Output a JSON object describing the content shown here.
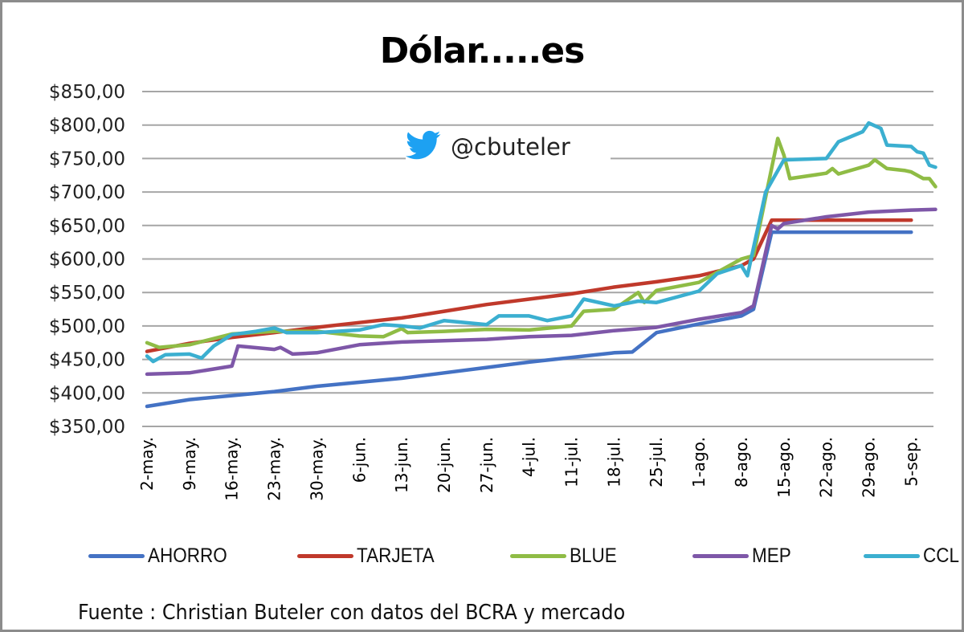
{
  "title": "Dólar.....es",
  "watermark": {
    "icon": "twitter-bird-icon",
    "handle": "@cbuteler",
    "color": "#1da1f2"
  },
  "source": "Fuente : Christian Buteler con datos del BCRA y mercado",
  "legend": [
    {
      "name": "AHORRO",
      "color": "#4472c4"
    },
    {
      "name": "TARJETA",
      "color": "#c0392b"
    },
    {
      "name": "BLUE",
      "color": "#8fbc45"
    },
    {
      "name": "MEP",
      "color": "#7e57a8"
    },
    {
      "name": "CCL",
      "color": "#3bafd0"
    }
  ],
  "chart_data": {
    "type": "line",
    "title": "Dólar.....es",
    "xlabel": "",
    "ylabel": "",
    "ylim": [
      350,
      850
    ],
    "y_ticks": [
      "$350,00",
      "$400,00",
      "$450,00",
      "$500,00",
      "$550,00",
      "$600,00",
      "$650,00",
      "$700,00",
      "$750,00",
      "$800,00",
      "$850,00"
    ],
    "x_tick_labels": [
      "2-may.",
      "9-may.",
      "16-may.",
      "23-may.",
      "30-may.",
      "6-jun.",
      "13-jun.",
      "20-jun.",
      "27-jun.",
      "4-jul.",
      "11-jul.",
      "18-jul.",
      "25-jul.",
      "1-ago.",
      "8-ago.",
      "15-ago.",
      "22-ago.",
      "29-ago.",
      "5-sep."
    ],
    "grid": true,
    "legend_position": "bottom",
    "x_unit": "days since 2-may",
    "series": [
      {
        "name": "AHORRO",
        "color": "#4472c4",
        "points": [
          [
            0,
            380
          ],
          [
            7,
            390
          ],
          [
            14,
            396
          ],
          [
            21,
            402
          ],
          [
            28,
            410
          ],
          [
            35,
            416
          ],
          [
            42,
            422
          ],
          [
            49,
            430
          ],
          [
            56,
            438
          ],
          [
            63,
            446
          ],
          [
            70,
            453
          ],
          [
            77,
            460
          ],
          [
            80,
            461
          ],
          [
            84,
            490
          ],
          [
            91,
            503
          ],
          [
            98,
            515
          ],
          [
            100,
            525
          ],
          [
            103,
            640
          ],
          [
            109,
            640
          ],
          [
            116,
            640
          ],
          [
            123,
            640
          ],
          [
            126,
            640
          ]
        ]
      },
      {
        "name": "TARJETA",
        "color": "#c0392b",
        "points": [
          [
            0,
            462
          ],
          [
            7,
            474
          ],
          [
            14,
            483
          ],
          [
            21,
            490
          ],
          [
            28,
            498
          ],
          [
            35,
            505
          ],
          [
            42,
            512
          ],
          [
            49,
            522
          ],
          [
            56,
            532
          ],
          [
            63,
            540
          ],
          [
            70,
            548
          ],
          [
            77,
            558
          ],
          [
            84,
            566
          ],
          [
            91,
            575
          ],
          [
            98,
            590
          ],
          [
            100,
            600
          ],
          [
            103,
            658
          ],
          [
            109,
            658
          ],
          [
            116,
            658
          ],
          [
            123,
            658
          ],
          [
            126,
            658
          ]
        ]
      },
      {
        "name": "BLUE",
        "color": "#8fbc45",
        "points": [
          [
            0,
            475
          ],
          [
            2,
            468
          ],
          [
            7,
            472
          ],
          [
            14,
            488
          ],
          [
            21,
            492
          ],
          [
            28,
            492
          ],
          [
            35,
            485
          ],
          [
            39,
            484
          ],
          [
            42,
            496
          ],
          [
            43,
            490
          ],
          [
            49,
            492
          ],
          [
            56,
            495
          ],
          [
            63,
            494
          ],
          [
            70,
            500
          ],
          [
            72,
            522
          ],
          [
            77,
            525
          ],
          [
            81,
            550
          ],
          [
            82,
            535
          ],
          [
            84,
            553
          ],
          [
            91,
            565
          ],
          [
            98,
            600
          ],
          [
            100,
            605
          ],
          [
            104,
            780
          ],
          [
            105,
            755
          ],
          [
            106,
            720
          ],
          [
            112,
            728
          ],
          [
            113,
            735
          ],
          [
            114,
            727
          ],
          [
            119,
            740
          ],
          [
            120,
            748
          ],
          [
            122,
            735
          ],
          [
            125,
            732
          ],
          [
            126,
            730
          ],
          [
            128,
            720
          ],
          [
            129,
            720
          ],
          [
            130,
            708
          ]
        ]
      },
      {
        "name": "MEP",
        "color": "#7e57a8",
        "points": [
          [
            0,
            428
          ],
          [
            7,
            430
          ],
          [
            14,
            440
          ],
          [
            15,
            470
          ],
          [
            21,
            465
          ],
          [
            22,
            468
          ],
          [
            24,
            458
          ],
          [
            28,
            460
          ],
          [
            35,
            472
          ],
          [
            42,
            476
          ],
          [
            49,
            478
          ],
          [
            56,
            480
          ],
          [
            63,
            484
          ],
          [
            70,
            486
          ],
          [
            77,
            493
          ],
          [
            84,
            498
          ],
          [
            91,
            510
          ],
          [
            98,
            520
          ],
          [
            100,
            530
          ],
          [
            103,
            650
          ],
          [
            104,
            645
          ],
          [
            105,
            653
          ],
          [
            112,
            663
          ],
          [
            119,
            670
          ],
          [
            126,
            673
          ],
          [
            130,
            674
          ]
        ]
      },
      {
        "name": "CCL",
        "color": "#3bafd0",
        "points": [
          [
            0,
            455
          ],
          [
            1,
            447
          ],
          [
            3,
            457
          ],
          [
            7,
            458
          ],
          [
            9,
            452
          ],
          [
            11,
            470
          ],
          [
            14,
            487
          ],
          [
            18,
            492
          ],
          [
            21,
            497
          ],
          [
            23,
            490
          ],
          [
            28,
            490
          ],
          [
            35,
            494
          ],
          [
            39,
            502
          ],
          [
            42,
            500
          ],
          [
            45,
            497
          ],
          [
            49,
            508
          ],
          [
            56,
            502
          ],
          [
            58,
            515
          ],
          [
            63,
            515
          ],
          [
            66,
            508
          ],
          [
            70,
            515
          ],
          [
            72,
            540
          ],
          [
            77,
            530
          ],
          [
            81,
            537
          ],
          [
            84,
            535
          ],
          [
            91,
            552
          ],
          [
            94,
            578
          ],
          [
            98,
            590
          ],
          [
            99,
            575
          ],
          [
            102,
            700
          ],
          [
            105,
            748
          ],
          [
            112,
            750
          ],
          [
            114,
            775
          ],
          [
            118,
            790
          ],
          [
            119,
            803
          ],
          [
            121,
            795
          ],
          [
            122,
            770
          ],
          [
            126,
            768
          ],
          [
            127,
            760
          ],
          [
            128,
            758
          ],
          [
            129,
            740
          ],
          [
            130,
            737
          ]
        ]
      }
    ]
  }
}
